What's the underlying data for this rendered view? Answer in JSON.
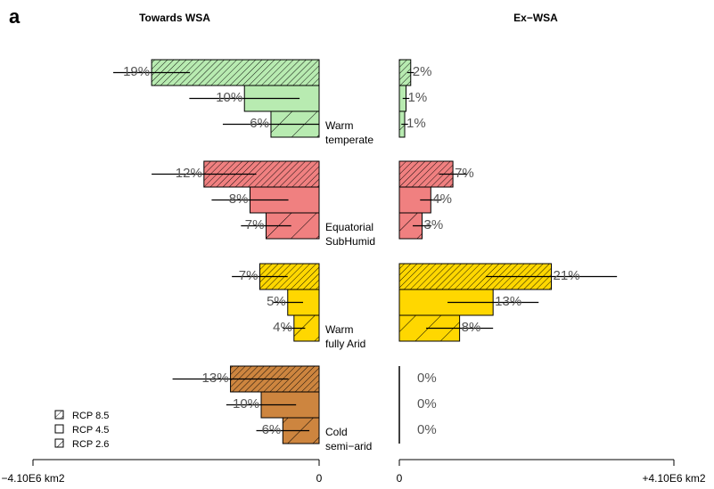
{
  "panel_letter": "a",
  "axis": {
    "min_label": "−4.10E6 km2",
    "max_label": "+4.10E6 km2",
    "zero_left": "0",
    "zero_right": "0"
  },
  "legend": [
    {
      "label": "RCP 8.5",
      "pattern": "dense"
    },
    {
      "label": "RCP 4.5",
      "pattern": "none"
    },
    {
      "label": "RCP 2.6",
      "pattern": "sparse"
    }
  ],
  "colors": {
    "Warm temperate": "#b8ebb1",
    "Equatorial SubHumid": "#f08080",
    "Warm fully Arid": "#ffd700",
    "Cold semi-arid": "#cd853f"
  },
  "chart_data": {
    "type": "bar",
    "orientation": "horizontal",
    "units": "km2",
    "xlim": [
      -4100000,
      4100000
    ],
    "scenarios": [
      "RCP 8.5",
      "RCP 4.5",
      "RCP 2.6"
    ],
    "panels": [
      {
        "title": "Towards WSA",
        "side": "left",
        "groups": [
          {
            "category": "Warm temperate",
            "label_lines": [
              "Warm",
              "temperate"
            ],
            "values": [
              2400000,
              1070000,
              690000
            ],
            "errors": [
              550000,
              790000,
              690000
            ],
            "percent_labels": [
              "19%",
              "10%",
              "6%"
            ]
          },
          {
            "category": "Equatorial SubHumid",
            "label_lines": [
              "Equatorial",
              "SubHumid"
            ],
            "values": [
              1650000,
              990000,
              760000
            ],
            "errors": [
              750000,
              550000,
              360000
            ],
            "percent_labels": [
              "12%",
              "8%",
              "7%"
            ]
          },
          {
            "category": "Warm fully Arid",
            "label_lines": [
              "Warm",
              "fully Arid"
            ],
            "values": [
              850000,
              450000,
              360000
            ],
            "errors": [
              400000,
              220000,
              160000
            ],
            "percent_labels": [
              "7%",
              "5%",
              "4%"
            ]
          },
          {
            "category": "Cold semi-arid",
            "label_lines": [
              "Cold",
              "semi−arid"
            ],
            "values": [
              1270000,
              830000,
              520000
            ],
            "errors": [
              830000,
              500000,
              380000
            ],
            "percent_labels": [
              "13%",
              "10%",
              "6%"
            ]
          }
        ]
      },
      {
        "title": "Ex−WSA",
        "side": "right",
        "groups": [
          {
            "category": "Warm temperate",
            "values": [
              170000,
              100000,
              80000
            ],
            "errors": [
              50000,
              50000,
              50000
            ],
            "percent_labels": [
              "2%",
              "1%",
              "1%"
            ]
          },
          {
            "category": "Equatorial SubHumid",
            "values": [
              800000,
              470000,
              340000
            ],
            "errors": [
              210000,
              160000,
              140000
            ],
            "percent_labels": [
              "7%",
              "4%",
              "3%"
            ]
          },
          {
            "category": "Warm fully Arid",
            "values": [
              2270000,
              1400000,
              900000
            ],
            "errors": [
              980000,
              680000,
              500000
            ],
            "percent_labels": [
              "21%",
              "13%",
              "8%"
            ]
          },
          {
            "category": "Cold semi-arid",
            "values": [
              0,
              0,
              0
            ],
            "errors": [
              0,
              0,
              0
            ],
            "percent_labels": [
              "0%",
              "0%",
              "0%"
            ]
          }
        ]
      }
    ]
  }
}
